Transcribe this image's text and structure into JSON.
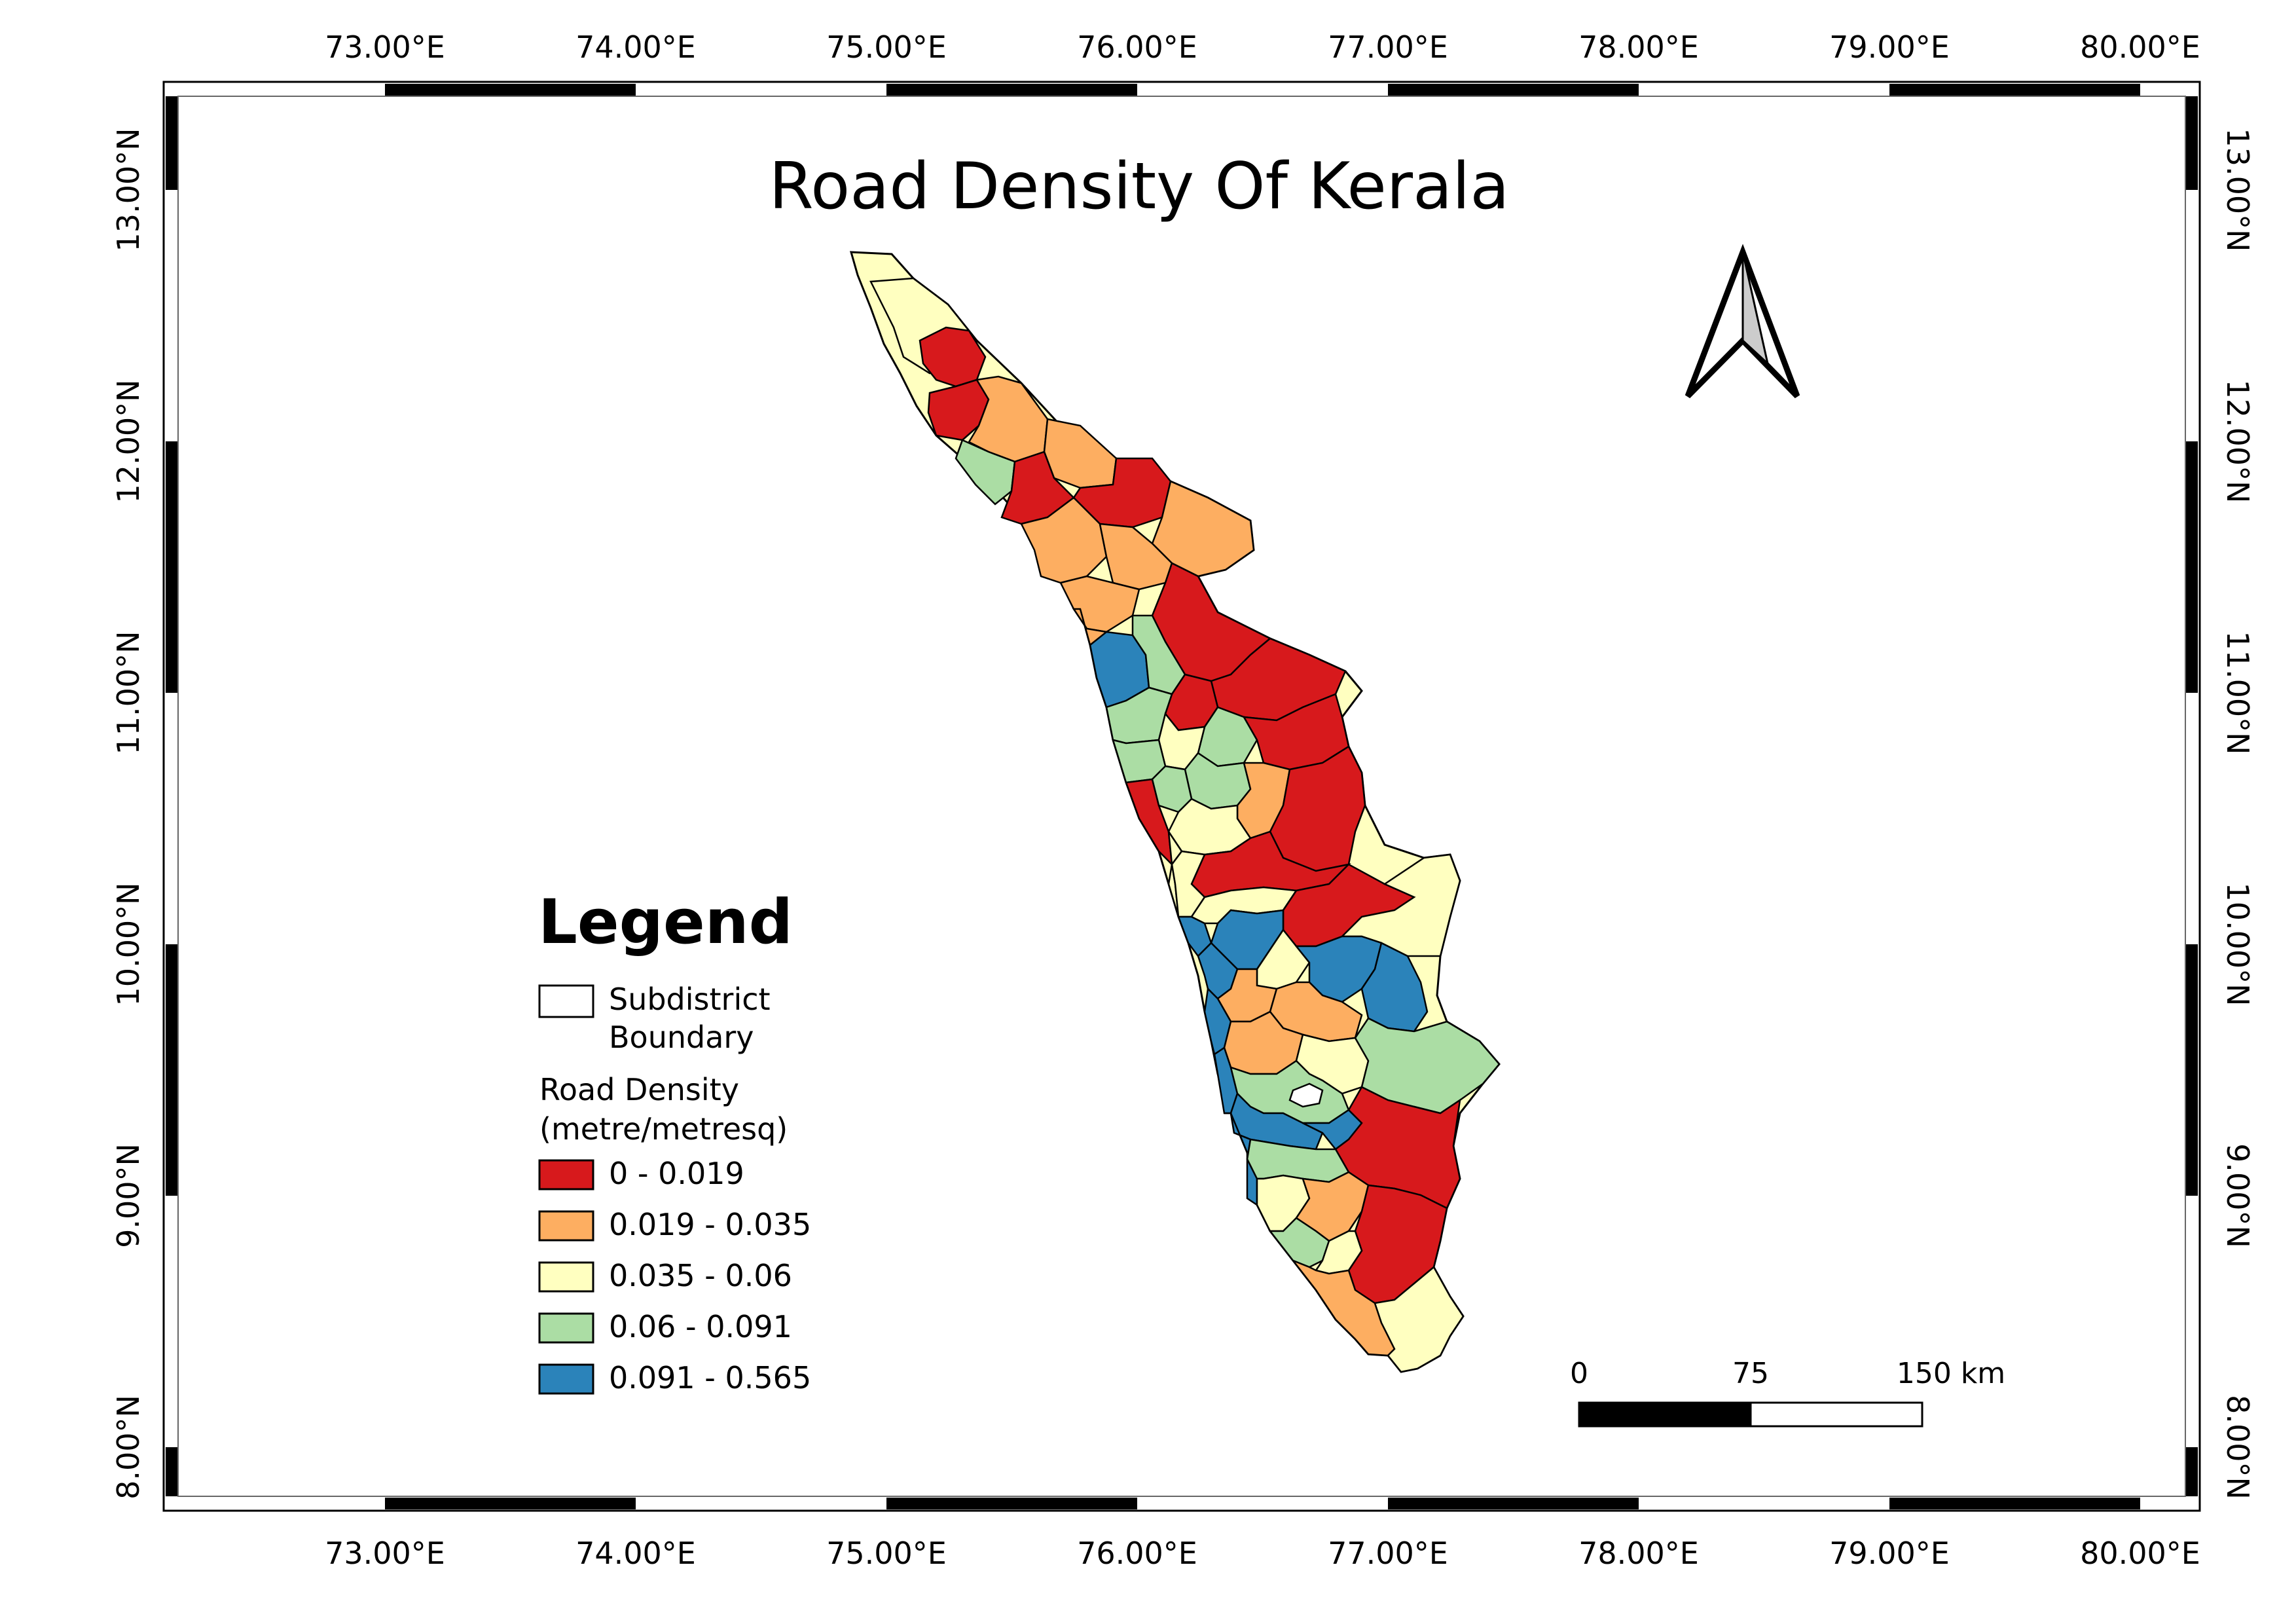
{
  "map": {
    "title": "Road Density Of Kerala",
    "grid": {
      "lon_labels": [
        "73.00°E",
        "74.00°E",
        "75.00°E",
        "76.00°E",
        "77.00°E",
        "78.00°E",
        "79.00°E",
        "80.00°E"
      ],
      "lat_labels": [
        "13.00°N",
        "12.00°N",
        "11.00°N",
        "10.00°N",
        "9.00°N",
        "8.00°N"
      ]
    },
    "legend": {
      "heading": "Legend",
      "boundary_line1": "Subdistrict",
      "boundary_line2": "Boundary",
      "density_line1": "Road Density",
      "density_line2": "(metre/metresq)",
      "classes": [
        {
          "label": "0 - 0.019",
          "color": "#d7191c"
        },
        {
          "label": "0.019 - 0.035",
          "color": "#fdae61"
        },
        {
          "label": "0.035 - 0.06",
          "color": "#ffffc0"
        },
        {
          "label": "0.06 - 0.091",
          "color": "#abdda4"
        },
        {
          "label": "0.091 - 0.565",
          "color": "#2b83ba"
        }
      ]
    },
    "scalebar": {
      "labels": [
        "0",
        "75",
        "150 km"
      ]
    },
    "colors": {
      "outline": "#000000",
      "no_data": "#ffffff"
    }
  }
}
